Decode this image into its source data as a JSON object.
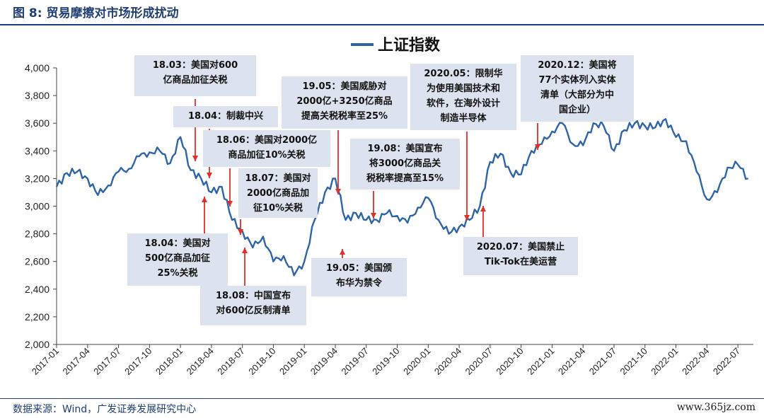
{
  "figure": {
    "title": "图 8: 贸易摩擦对市场形成扰动",
    "source": "数据来源：Wind，广发证券发展研究中心",
    "watermark": "www.365jz.com"
  },
  "colors": {
    "series": "#2e64a8",
    "arrow": "#e0302a",
    "box": "#dde3ee",
    "accent": "#1f3f73"
  },
  "chart_data": {
    "type": "line",
    "title": "",
    "xlabel": "",
    "ylabel": "",
    "ylim": [
      2000,
      4000
    ],
    "yticks": [
      "2,000",
      "2,200",
      "2,400",
      "2,600",
      "2,800",
      "3,000",
      "3,200",
      "3,400",
      "3,600",
      "3,800",
      "4,000"
    ],
    "xticks": [
      "2017-01",
      "2017-04",
      "2017-07",
      "2017-10",
      "2018-01",
      "2018-04",
      "2018-07",
      "2018-10",
      "2019-01",
      "2019-04",
      "2019-07",
      "2019-10",
      "2020-01",
      "2020-04",
      "2020-07",
      "2020-10",
      "2021-01",
      "2021-04",
      "2021-07",
      "2021-10",
      "2022-01",
      "2022-04",
      "2022-07"
    ],
    "grid": false,
    "legend": "top-center",
    "series": [
      {
        "name": "上证指数",
        "x": [
          "2017-01",
          "2017-02",
          "2017-03",
          "2017-04",
          "2017-05",
          "2017-06",
          "2017-07",
          "2017-08",
          "2017-09",
          "2017-10",
          "2017-11",
          "2017-12",
          "2018-01",
          "2018-02",
          "2018-03",
          "2018-04",
          "2018-05",
          "2018-06",
          "2018-07",
          "2018-08",
          "2018-09",
          "2018-10",
          "2018-11",
          "2018-12",
          "2019-01",
          "2019-02",
          "2019-03",
          "2019-04",
          "2019-05",
          "2019-06",
          "2019-07",
          "2019-08",
          "2019-09",
          "2019-10",
          "2019-11",
          "2019-12",
          "2020-01",
          "2020-02",
          "2020-03",
          "2020-04",
          "2020-05",
          "2020-06",
          "2020-07",
          "2020-08",
          "2020-09",
          "2020-10",
          "2020-11",
          "2020-12",
          "2021-01",
          "2021-02",
          "2021-03",
          "2021-04",
          "2021-05",
          "2021-06",
          "2021-07",
          "2021-08",
          "2021-09",
          "2021-10",
          "2021-11",
          "2021-12",
          "2022-01",
          "2022-02",
          "2022-03",
          "2022-04",
          "2022-05",
          "2022-06",
          "2022-07",
          "2022-08"
        ],
        "values": [
          3140,
          3240,
          3250,
          3200,
          3080,
          3150,
          3250,
          3270,
          3360,
          3390,
          3400,
          3310,
          3500,
          3260,
          3200,
          3100,
          3140,
          2900,
          2820,
          2700,
          2780,
          2600,
          2640,
          2500,
          2600,
          2900,
          3100,
          3200,
          2900,
          2950,
          2900,
          2900,
          2950,
          2930,
          2880,
          2990,
          3060,
          2900,
          2800,
          2850,
          2900,
          3000,
          3320,
          3380,
          3240,
          3230,
          3400,
          3450,
          3540,
          3600,
          3450,
          3440,
          3600,
          3580,
          3400,
          3550,
          3600,
          3580,
          3570,
          3630,
          3500,
          3470,
          3250,
          3050,
          3100,
          3280,
          3300,
          3200
        ]
      }
    ],
    "annotations": [
      {
        "date": "2018-03",
        "text": "18.03：美国对600亿商品加征关税"
      },
      {
        "date": "2018-04",
        "text": "18.04：制裁中兴"
      },
      {
        "date": "2018-04",
        "text": "18.04：美国对500亿商品加征25%关税"
      },
      {
        "date": "2018-06",
        "text": "18.06：美国对2000亿商品加征10%关税"
      },
      {
        "date": "2018-07",
        "text": "18.07：美国对2000亿商品加征10%关税"
      },
      {
        "date": "2018-08",
        "text": "18.08：中国宣布对600亿反制清单"
      },
      {
        "date": "2019-05",
        "text": "19.05：美国威胁对2000亿+3250亿商品提高关税税率至25%"
      },
      {
        "date": "2019-05",
        "text": "19.05：美国颁布华为禁令"
      },
      {
        "date": "2019-08",
        "text": "19.08：美国宣布将3000亿商品关税税率提高至15%"
      },
      {
        "date": "2020-05",
        "text": "2020.05：限制华为使用美国技术和软件，在海外设计制造半导体"
      },
      {
        "date": "2020-07",
        "text": "2020.07：美国禁止Tik-Tok在美运营"
      },
      {
        "date": "2020-12",
        "text": "2020.12：美国将77个实体列入实体清单（大部分为中国企业）"
      }
    ]
  },
  "boxes": [
    "18.03：美国对600\n亿商品加征关税",
    "18.04：制裁中兴",
    "18.06：美国对2000亿\n商品加征10%关税",
    "18.07：美国对\n2000亿商品加\n征10%关税",
    "18.04：美国对\n500亿商品加征\n25%关税",
    "18.08：中国宣布\n对600亿反制清单",
    "19.05：美国威胁对\n2000亿+3250亿商品\n提高关税税率至25%",
    "19.08：美国宣布\n将3000亿商品关\n税税率提高至15%",
    "19.05：美国颁\n布华为禁令",
    "2020.05：限制华\n为使用美国技术和\n软件，在海外设计\n制造半导体",
    "2020.07：美国禁止\nTik-Tok在美运营",
    "2020.12：美国将\n77个实体列入实体\n清单（大部分为中\n国企业）"
  ]
}
